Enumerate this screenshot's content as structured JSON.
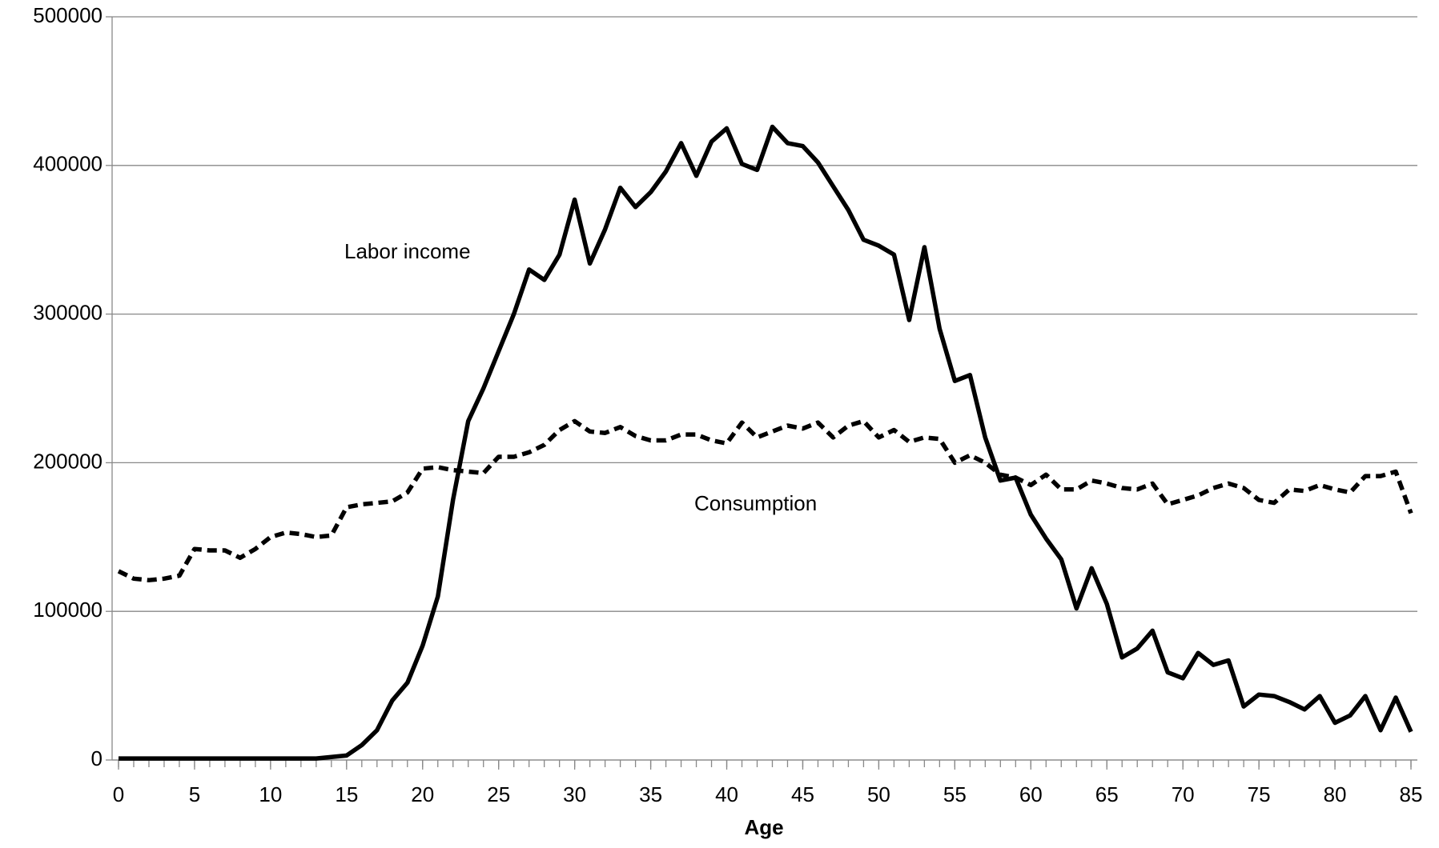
{
  "chart_data": {
    "type": "line",
    "x_label": "Age",
    "x": [
      0,
      1,
      2,
      3,
      4,
      5,
      6,
      7,
      8,
      9,
      10,
      11,
      12,
      13,
      14,
      15,
      16,
      17,
      18,
      19,
      20,
      21,
      22,
      23,
      24,
      25,
      26,
      27,
      28,
      29,
      30,
      31,
      32,
      33,
      34,
      35,
      36,
      37,
      38,
      39,
      40,
      41,
      42,
      43,
      44,
      45,
      46,
      47,
      48,
      49,
      50,
      51,
      52,
      53,
      54,
      55,
      56,
      57,
      58,
      59,
      60,
      61,
      62,
      63,
      64,
      65,
      66,
      67,
      68,
      69,
      70,
      71,
      72,
      73,
      74,
      75,
      76,
      77,
      78,
      79,
      80,
      81,
      82,
      83,
      84,
      85
    ],
    "series": [
      {
        "name": "Labor income",
        "color": "#000000",
        "dash": false,
        "values": [
          1000,
          1000,
          1000,
          1000,
          1000,
          1000,
          1000,
          1000,
          1000,
          1000,
          1000,
          1000,
          1000,
          1000,
          2000,
          3000,
          10000,
          20000,
          40000,
          52000,
          77000,
          110000,
          175000,
          228000,
          250000,
          275000,
          300000,
          330000,
          323000,
          340000,
          377000,
          334000,
          357000,
          385000,
          372000,
          382000,
          396000,
          415000,
          393000,
          416000,
          425000,
          401000,
          397000,
          426000,
          415000,
          413000,
          402000,
          386000,
          370000,
          350000,
          346000,
          340000,
          296000,
          345000,
          290000,
          255000,
          259000,
          217000,
          188000,
          190000,
          165000,
          149000,
          135000,
          102000,
          129000,
          105000,
          69000,
          75000,
          87000,
          59000,
          55000,
          72000,
          64000,
          67000,
          36000,
          44000,
          43000,
          39000,
          34000,
          43000,
          25000,
          30000,
          43000,
          20000,
          42000,
          19000
        ]
      },
      {
        "name": "Consumption",
        "color": "#000000",
        "dash": true,
        "values": [
          127000,
          122000,
          121000,
          122000,
          124000,
          142000,
          141000,
          141000,
          136000,
          142000,
          150000,
          153000,
          152000,
          150000,
          151000,
          170000,
          172000,
          173000,
          174000,
          180000,
          196000,
          197000,
          195000,
          194000,
          193000,
          204000,
          204000,
          207000,
          212000,
          222000,
          228000,
          221000,
          220000,
          224000,
          218000,
          215000,
          215000,
          219000,
          219000,
          215000,
          213000,
          227000,
          217000,
          221000,
          225000,
          223000,
          227000,
          217000,
          225000,
          228000,
          217000,
          222000,
          214000,
          217000,
          216000,
          200000,
          205000,
          200000,
          192000,
          190000,
          185000,
          192000,
          182000,
          182000,
          188000,
          186000,
          183000,
          182000,
          186000,
          172000,
          175000,
          178000,
          183000,
          186000,
          183000,
          175000,
          173000,
          182000,
          181000,
          185000,
          182000,
          180000,
          191000,
          191000,
          194000,
          166000
        ]
      }
    ],
    "xlim": [
      0,
      85
    ],
    "xticks": [
      0,
      5,
      10,
      15,
      20,
      25,
      30,
      35,
      40,
      45,
      50,
      55,
      60,
      65,
      70,
      75,
      80,
      85
    ],
    "ylim": [
      0,
      500000
    ],
    "yticks": [
      0,
      100000,
      200000,
      300000,
      400000,
      500000
    ],
    "grid": true
  }
}
